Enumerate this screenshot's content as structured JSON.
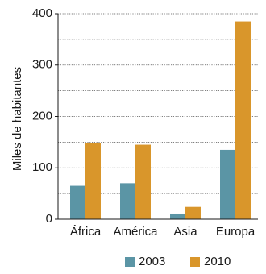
{
  "chart_data": {
    "type": "bar",
    "title": "",
    "xlabel": "",
    "ylabel": "Miles de habitantes",
    "categories": [
      "África",
      "América",
      "Asia",
      "Europa"
    ],
    "series": [
      {
        "name": "2003",
        "color": "#5b95a5",
        "values": [
          65,
          70,
          11,
          135
        ]
      },
      {
        "name": "2010",
        "color": "#d9962b",
        "values": [
          148,
          145,
          24,
          385
        ]
      }
    ],
    "ylim": [
      0,
      400
    ],
    "yticks": [
      0,
      100,
      200,
      300,
      400
    ],
    "minor_gridlines": [
      50,
      150,
      250,
      350
    ],
    "grid": "dotted horizontal",
    "legend": "bottom-center"
  }
}
